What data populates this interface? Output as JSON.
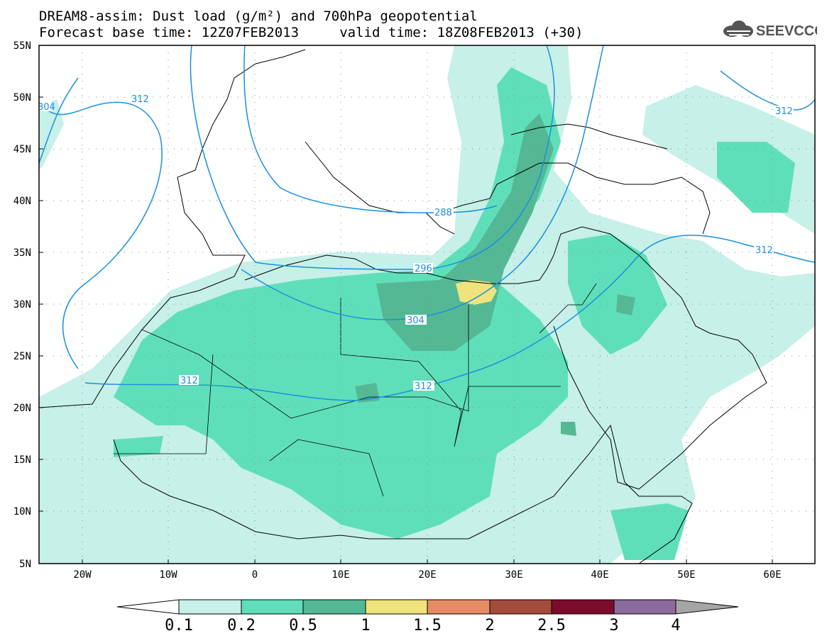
{
  "header": {
    "line1": "DREAM8-assim: Dust load (g/m²) and 700hPa geopotential",
    "line2": "Forecast base time: 12Z07FEB2013     valid time: 18Z08FEB2013 (+30)"
  },
  "logo": {
    "text": "SEEVCCC",
    "icon": "cloud-icon"
  },
  "map": {
    "projection": "lat-lon",
    "extent": {
      "lon_min": -25,
      "lon_max": 65,
      "lat_min": 5,
      "lat_max": 55
    },
    "lat_labels": [
      "55N",
      "50N",
      "45N",
      "40N",
      "35N",
      "30N",
      "25N",
      "20N",
      "15N",
      "10N",
      "5N"
    ],
    "lon_labels": [
      "20W",
      "10W",
      "0",
      "10E",
      "20E",
      "30E",
      "40E",
      "50E",
      "60E"
    ],
    "contour_labels": [
      "304",
      "312",
      "312",
      "288",
      "296",
      "304",
      "312",
      "312",
      "312"
    ],
    "contour_color": "#1a8fe0"
  },
  "colorbar": {
    "labels": [
      "0.1",
      "0.2",
      "0.5",
      "1",
      "1.5",
      "2",
      "2.5",
      "3",
      "4"
    ],
    "colors": [
      "#c6f0e8",
      "#5fdfb9",
      "#54b894",
      "#efe47c",
      "#e58b66",
      "#a34c3c",
      "#7b0c2c",
      "#8b6a9e",
      "#a5a5a5"
    ]
  }
}
